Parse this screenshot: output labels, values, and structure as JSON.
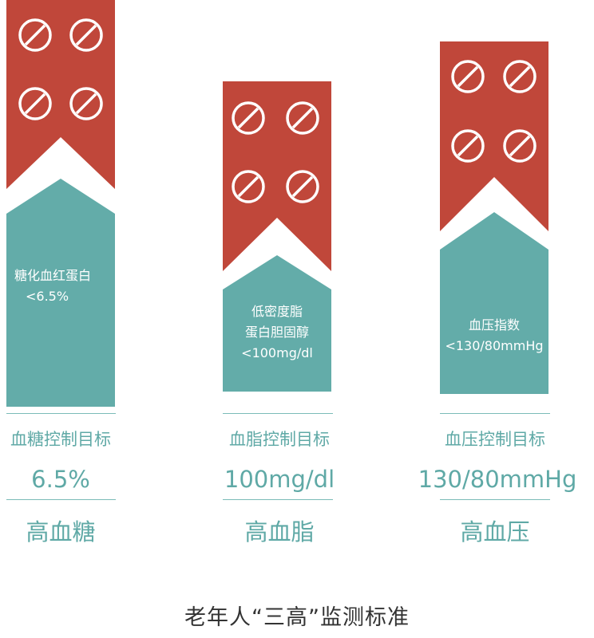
{
  "colors": {
    "red": "#c0473a",
    "teal": "#63aca9",
    "text_teal": "#5fa9a6",
    "footer": "#333333"
  },
  "icons": {
    "pill": "pill-no-sign-icon"
  },
  "columns": [
    {
      "label_lines": [
        "糖化血红蛋白",
        "<6.5%"
      ],
      "metric_label": "血糖控制目标",
      "value": "6.5%",
      "condition": "高血糖"
    },
    {
      "label_lines": [
        "低密度脂",
        "蛋白胆固醇",
        "<100mg/dl"
      ],
      "metric_label": "血脂控制目标",
      "value": "100mg/dl",
      "condition": "高血脂"
    },
    {
      "label_lines": [
        "血压指数",
        "<130/80mmHg"
      ],
      "metric_label": "血压控制目标",
      "value": "130/80mmHg",
      "condition": "高血压"
    }
  ],
  "footer": "老年人“三高”监测标准"
}
